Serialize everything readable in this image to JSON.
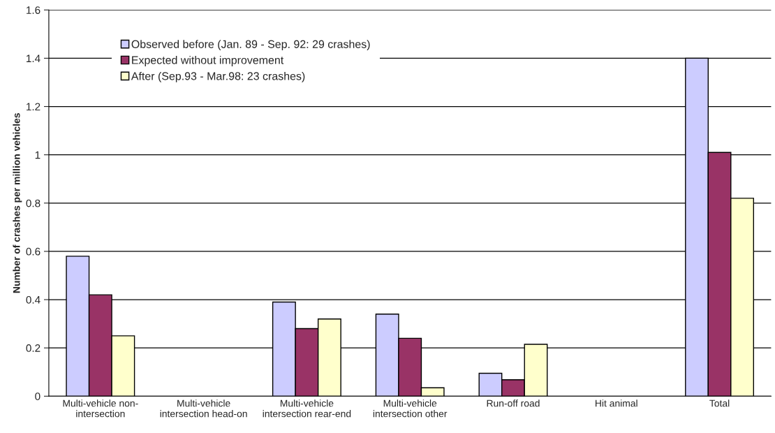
{
  "chart_data": {
    "type": "bar",
    "ylabel": "Number of crashes per million vehicles",
    "categories": [
      "Multi-vehicle non-\nintersection",
      "Multi-vehicle\nintersection head-on",
      "Multi-vehicle\nintersection rear-end",
      "Multi-vehicle\nintersection other",
      "Run-off road",
      "Hit animal",
      "Total"
    ],
    "series": [
      {
        "name": "Observed before (Jan. 89 - Sep. 92: 29 crashes)",
        "color": "#ccccff",
        "values": [
          0.58,
          null,
          0.39,
          0.34,
          0.095,
          null,
          1.4
        ]
      },
      {
        "name": "Expected without improvement",
        "color": "#993366",
        "values": [
          0.42,
          null,
          0.28,
          0.24,
          0.068,
          null,
          1.01
        ]
      },
      {
        "name": "After (Sep.93 - Mar.98: 23 crashes)",
        "color": "#ffffcc",
        "values": [
          0.25,
          null,
          0.32,
          0.035,
          0.215,
          null,
          0.82
        ]
      }
    ],
    "ylim": [
      0,
      1.6
    ],
    "yticks": [
      0,
      0.2,
      0.4,
      0.6,
      0.8,
      1,
      1.2,
      1.4,
      1.6
    ],
    "grid": "y",
    "legend": "top left"
  }
}
